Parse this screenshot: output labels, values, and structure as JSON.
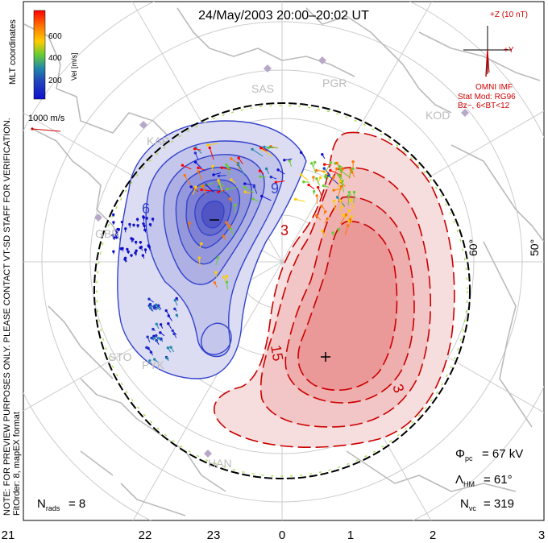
{
  "title": "24/May/2003 20:00–20:02 UT",
  "colorbar": {
    "title": "Vel [m/s]",
    "ticks": [
      "600",
      "400",
      "200"
    ],
    "stops": [
      "#ff0000",
      "#ff7700",
      "#ffcc00",
      "#66cc33",
      "#2288aa",
      "#2233cc",
      "#1111cc"
    ]
  },
  "mlt_label": "MLT coordinates",
  "ref_vector": "1000 m/s",
  "note": "NOTE: FOR PREVIEW PURPOSES ONLY. PLEASE CONTACT VT-SD STAFF FOR VERIFICATION.",
  "fit_info": "FitOrder: 8, mapEX format",
  "stations": [
    "SAS",
    "PGR",
    "KOD",
    "KAP",
    "STO",
    "PYK",
    "HAN",
    "GBR"
  ],
  "lat_labels": [
    "60°",
    "50°"
  ],
  "contour_labels": [
    "6",
    "9",
    "3",
    "15",
    "3"
  ],
  "imf": {
    "bz_label": "+Z (10 nT)",
    "by_label": "+Y",
    "source": "OMNI IMF",
    "stat_mod": "Stat Mod: RG96",
    "condition": "Bz−, 6<BT<12"
  },
  "stats": {
    "phi_label": "Φ",
    "phi_sub": "pc",
    "phi_value": "= 67 kV",
    "lambda_label": "Λ",
    "lambda_sub": "HM",
    "lambda_value": "= 61°",
    "nvc_label": "N",
    "nvc_sub": "vc",
    "nvc_value": "= 319",
    "nrads_label": "N",
    "nrads_sub": "rads",
    "nrads_value": "= 8"
  },
  "mlt_ticks": [
    "21",
    "22",
    "23",
    "0",
    "1",
    "2",
    "3"
  ],
  "colors": {
    "negative_cell": "#3344cc",
    "positive_cell": "#cc0000",
    "frame": "#000000",
    "coast": "#bbbbbb",
    "grid": "#cccccc"
  }
}
